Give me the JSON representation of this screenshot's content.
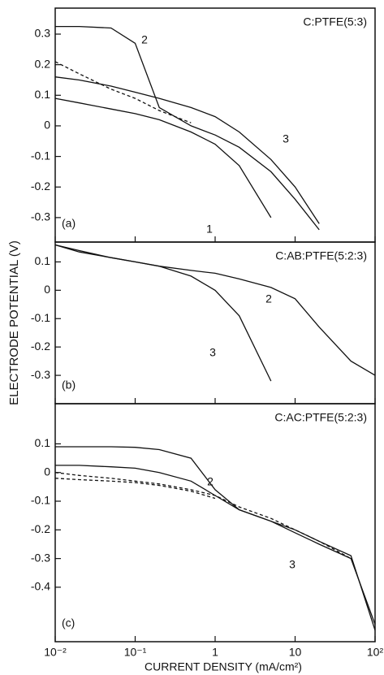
{
  "chart_data": [
    {
      "type": "line",
      "title": "C:PTFE(5:3)",
      "panel_label": "(a)",
      "log_x": true,
      "x": [
        0.01,
        0.02,
        0.05,
        0.1,
        0.2,
        0.5,
        1,
        2,
        5,
        10,
        20,
        50,
        100
      ],
      "xlim": [
        0.01,
        100
      ],
      "ylim": [
        -0.38,
        0.385
      ],
      "yticks": [
        0.3,
        0.2,
        0.1,
        0,
        -0.1,
        -0.2,
        -0.3
      ],
      "series": [
        {
          "name": "1",
          "color": "#111",
          "values": [
            0.09,
            0.075,
            0.055,
            0.04,
            0.02,
            -0.02,
            -0.06,
            -0.13,
            -0.3,
            null,
            null,
            null,
            null
          ]
        },
        {
          "name": "2",
          "color": "#111",
          "values": [
            0.325,
            0.325,
            0.32,
            0.27,
            0.06,
            0.0,
            -0.03,
            -0.07,
            -0.15,
            -0.24,
            -0.34,
            null,
            null
          ]
        },
        {
          "name": "3",
          "color": "#111",
          "values": [
            0.16,
            0.15,
            0.13,
            0.11,
            0.09,
            0.06,
            0.03,
            -0.02,
            -0.11,
            -0.2,
            -0.32,
            null,
            null
          ]
        },
        {
          "color": "#111",
          "dashed": true,
          "values": [
            0.21,
            0.17,
            0.12,
            0.09,
            0.05,
            0.01,
            null,
            null,
            null,
            null,
            null,
            null,
            null
          ]
        }
      ]
    },
    {
      "type": "line",
      "title": "C:AB:PTFE(5:2:3)",
      "panel_label": "(b)",
      "log_x": true,
      "ylabel": "ELECTRODE POTENTIAL (V)",
      "x": [
        0.01,
        0.02,
        0.05,
        0.1,
        0.2,
        0.5,
        1,
        2,
        5,
        10,
        20,
        50,
        100
      ],
      "xlim": [
        0.01,
        100
      ],
      "ylim": [
        -0.4,
        0.17
      ],
      "yticks": [
        0.1,
        0,
        -0.1,
        -0.2,
        -0.3
      ],
      "series": [
        {
          "name": "2",
          "color": "#111",
          "values": [
            0.16,
            0.14,
            0.115,
            0.1,
            0.085,
            0.07,
            0.06,
            0.04,
            0.01,
            -0.03,
            -0.13,
            -0.25,
            -0.3
          ]
        },
        {
          "name": "3",
          "color": "#111",
          "values": [
            0.16,
            0.135,
            0.115,
            0.1,
            0.085,
            0.05,
            0.0,
            -0.09,
            -0.32,
            null,
            null,
            null,
            null
          ]
        }
      ]
    },
    {
      "type": "line",
      "title": "C:AC:PTFE(5:2:3)",
      "panel_label": "(c)",
      "log_x": true,
      "xlabel": "CURRENT DENSITY (mA/cm²)",
      "x": [
        0.01,
        0.02,
        0.05,
        0.1,
        0.2,
        0.5,
        1,
        2,
        5,
        10,
        20,
        50,
        100
      ],
      "xlim": [
        0.01,
        100
      ],
      "xticks": [
        {
          "value": 0.01,
          "label": "10⁻²"
        },
        {
          "value": 0.1,
          "label": "10⁻¹"
        },
        1,
        10,
        {
          "value": 100,
          "label": "10²"
        }
      ],
      "ylim": [
        -0.59,
        0.24
      ],
      "yticks": [
        0.1,
        0,
        -0.1,
        -0.2,
        -0.3,
        -0.4
      ],
      "series": [
        {
          "name": "2",
          "color": "#111",
          "values": [
            0.09,
            0.09,
            0.09,
            0.088,
            0.08,
            0.05,
            -0.06,
            -0.13,
            -0.17,
            -0.2,
            -0.24,
            -0.29,
            -0.55
          ]
        },
        {
          "name": "3",
          "color": "#111",
          "values": [
            0.025,
            0.025,
            0.02,
            0.015,
            0.0,
            -0.03,
            -0.08,
            -0.13,
            -0.17,
            -0.21,
            -0.25,
            -0.3,
            -0.53
          ]
        },
        {
          "color": "#111",
          "dashed": true,
          "values": [
            0.0,
            -0.01,
            -0.02,
            -0.03,
            -0.04,
            -0.06,
            -0.08,
            -0.12,
            -0.16,
            -0.2,
            -0.24,
            -0.3,
            null
          ]
        },
        {
          "color": "#111",
          "dashed": true,
          "values": [
            -0.02,
            -0.025,
            -0.03,
            -0.035,
            -0.045,
            -0.065,
            -0.09,
            null,
            null,
            null,
            null,
            null,
            null
          ]
        }
      ]
    }
  ]
}
